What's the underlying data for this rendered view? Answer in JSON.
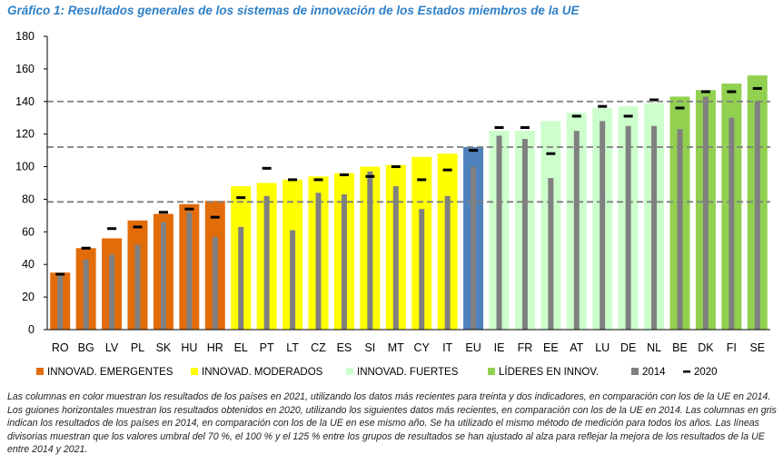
{
  "chart_data": {
    "type": "bar",
    "title": "Gráfico 1: Resultados generales de los sistemas de innovación de los Estados miembros de la UE",
    "ylim": [
      0,
      180
    ],
    "yticks": [
      0,
      20,
      40,
      60,
      80,
      100,
      120,
      140,
      160,
      180
    ],
    "categories": [
      "RO",
      "BG",
      "LV",
      "PL",
      "SK",
      "HU",
      "HR",
      "EL",
      "PT",
      "LT",
      "CZ",
      "ES",
      "SI",
      "MT",
      "CY",
      "IT",
      "EU",
      "IE",
      "FR",
      "EE",
      "AT",
      "LU",
      "DE",
      "NL",
      "BE",
      "DK",
      "FI",
      "SE"
    ],
    "groups": [
      "em",
      "em",
      "em",
      "em",
      "em",
      "em",
      "em",
      "mod",
      "mod",
      "mod",
      "mod",
      "mod",
      "mod",
      "mod",
      "mod",
      "mod",
      "eu",
      "str",
      "str",
      "str",
      "str",
      "str",
      "str",
      "str",
      "lead",
      "lead",
      "lead",
      "lead"
    ],
    "series": [
      {
        "name": "2021",
        "values": [
          35,
          50,
          56,
          67,
          71,
          77,
          79,
          88,
          90,
          92,
          94,
          96,
          100,
          101,
          106,
          108,
          112,
          122,
          122,
          128,
          133,
          136,
          137,
          139,
          143,
          147,
          151,
          156
        ]
      },
      {
        "name": "2014",
        "values": [
          33,
          43,
          46,
          52,
          66,
          72,
          57,
          63,
          82,
          61,
          84,
          83,
          97,
          88,
          74,
          82,
          100,
          119,
          117,
          93,
          122,
          128,
          125,
          125,
          123,
          143,
          130,
          140
        ]
      },
      {
        "name": "2020",
        "values": [
          34,
          50,
          62,
          63,
          72,
          74,
          69,
          81,
          99,
          92,
          92,
          95,
          94,
          100,
          92,
          98,
          110,
          124,
          124,
          108,
          131,
          137,
          131,
          141,
          136,
          146,
          146,
          148
        ]
      }
    ],
    "threshold_lines": [
      78.4,
      112,
      140
    ],
    "group_colors": {
      "em": "#e36c0a",
      "mod": "#ffff00",
      "str": "#ccffcc",
      "lead": "#92d050",
      "eu": "#4f81bd"
    },
    "gray_color": "#808080",
    "legend": [
      {
        "label": "INNOVAD. EMERGENTES",
        "color": "#e36c0a",
        "kind": "square"
      },
      {
        "label": "INNOVAD. MODERADOS",
        "color": "#ffff00",
        "kind": "square"
      },
      {
        "label": "INNOVAD. FUERTES",
        "color": "#ccffcc",
        "kind": "square"
      },
      {
        "label": "LÍDERES EN INNOV.",
        "color": "#92d050",
        "kind": "square"
      },
      {
        "label": "2014",
        "color": "#808080",
        "kind": "square"
      },
      {
        "label": "2020",
        "color": "#000000",
        "kind": "dash"
      }
    ]
  },
  "caption": "Las columnas en color muestran los resultados de los países en 2021, utilizando los datos más recientes para treinta y dos indicadores, en comparación con los de la UE en 2014. Los guiones horizontales muestran los resultados obtenidos en 2020, utilizando los siguientes datos más recientes, en comparación con los de la UE en 2014. Las columnas en gris indican los resultados de los países en 2014, en comparación con los de la UE en ese mismo año. Se ha utilizado el mismo método de medición para todos los años. Las líneas divisorias muestran que los valores umbral del 70 %, el 100 % y el 125 % entre los grupos de resultados se han ajustado al alza para reflejar la mejora de los resultados de la UE entre 2014 y 2021."
}
